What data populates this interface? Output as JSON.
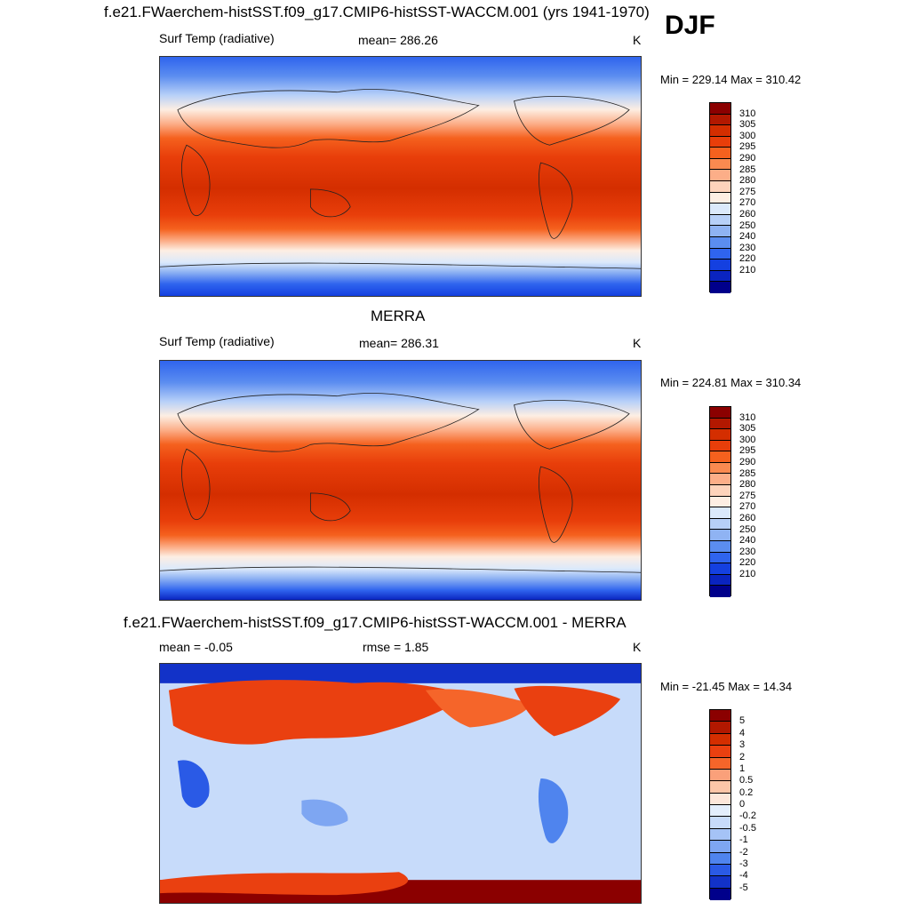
{
  "season": "DJF",
  "panels": [
    {
      "title": "f.e21.FWaerchem-histSST.f09_g17.CMIP6-histSST-WACCM.001 (yrs 1941-1970)",
      "left_label": "Surf Temp (radiative)",
      "center_label": "mean= 286.26",
      "units": "K",
      "minmax": "Min = 229.14 Max = 310.42",
      "colorbar_ticks": [
        "310",
        "305",
        "300",
        "295",
        "290",
        "285",
        "280",
        "275",
        "270",
        "260",
        "250",
        "240",
        "230",
        "220",
        "210"
      ]
    },
    {
      "title": "MERRA",
      "left_label": "Surf Temp (radiative)",
      "center_label": "mean= 286.31",
      "units": "K",
      "minmax": "Min = 224.81 Max = 310.34",
      "colorbar_ticks": [
        "310",
        "305",
        "300",
        "295",
        "290",
        "285",
        "280",
        "275",
        "270",
        "260",
        "250",
        "240",
        "230",
        "220",
        "210"
      ]
    },
    {
      "title": "f.e21.FWaerchem-histSST.f09_g17.CMIP6-histSST-WACCM.001 - MERRA",
      "left_label": "mean =  -0.05",
      "center_label": "rmse =   1.85",
      "units": "K",
      "minmax": "Min = -21.45 Max =  14.34",
      "colorbar_ticks": [
        "5",
        "4",
        "3",
        "2",
        "1",
        "0.5",
        "0.2",
        "0",
        "-0.2",
        "-0.5",
        "-1",
        "-2",
        "-3",
        "-4",
        "-5"
      ]
    }
  ],
  "colors": {
    "temperature_scale": [
      "#8b0000",
      "#b21800",
      "#d42e00",
      "#e83e0a",
      "#f5611e",
      "#fa8a50",
      "#fcae88",
      "#fdd3bb",
      "#fdeee3",
      "#dbe9fb",
      "#b7d0f8",
      "#8fb3f3",
      "#5b8df0",
      "#2f64ee",
      "#1440e0",
      "#0a24c0",
      "#00008b"
    ],
    "difference_scale": [
      "#8b0000",
      "#b21800",
      "#d42e00",
      "#ea4010",
      "#f5652a",
      "#faa07a",
      "#fcc6a8",
      "#fde7da",
      "#e3eefc",
      "#c7dbfa",
      "#a5c3f6",
      "#7ea6f2",
      "#4f84ee",
      "#2a5ae6",
      "#1232c8",
      "#00008b"
    ],
    "land_outline": "#222222"
  }
}
